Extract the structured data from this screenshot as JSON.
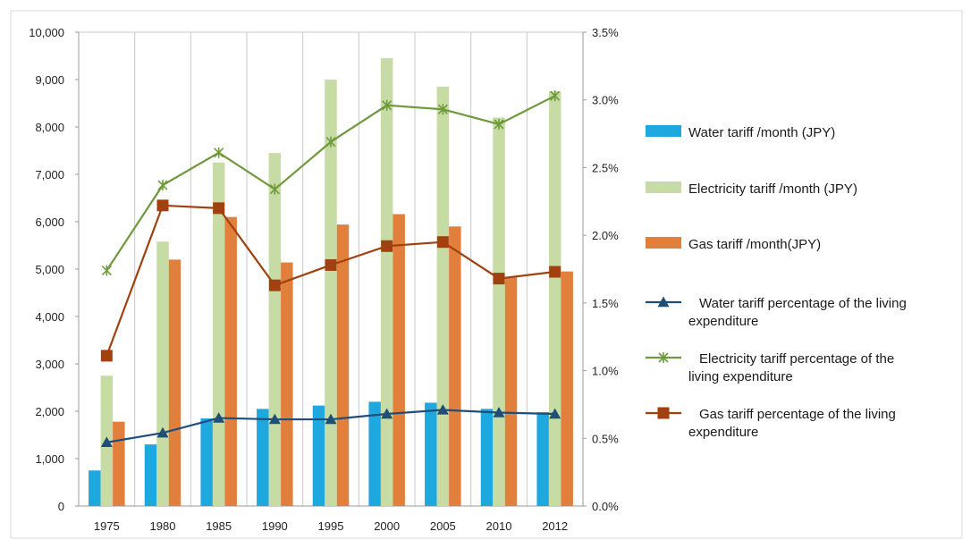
{
  "colors": {
    "water_bar": "#1fa8e0",
    "electricity_bar": "#c6dca4",
    "gas_bar": "#e0803c",
    "water_line": "#1f4e79",
    "electricity_line": "#6e9a3c",
    "gas_line": "#a0410f",
    "grid": "#c8c8c8"
  },
  "chart_data": {
    "type": "bar",
    "categories": [
      "1975",
      "1980",
      "1985",
      "1990",
      "1995",
      "2000",
      "2005",
      "2010",
      "2012"
    ],
    "y_left": {
      "min": 0,
      "max": 10000,
      "step": 1000,
      "tick_labels": [
        "0",
        "1,000",
        "2,000",
        "3,000",
        "4,000",
        "5,000",
        "6,000",
        "7,000",
        "8,000",
        "9,000",
        "10,000"
      ]
    },
    "y_right": {
      "min": 0,
      "max": 0.035,
      "step": 0.005,
      "tick_labels": [
        "0.0%",
        "0.5%",
        "1.0%",
        "1.5%",
        "2.0%",
        "2.5%",
        "3.0%",
        "3.5%"
      ]
    },
    "bar_series": [
      {
        "name": "Water tariff /month (JPY)",
        "values": [
          750,
          1300,
          1850,
          2050,
          2120,
          2200,
          2180,
          2050,
          1980
        ]
      },
      {
        "name": "Electricity tariff /month (JPY)",
        "values": [
          2750,
          5580,
          7250,
          7450,
          9000,
          9450,
          8850,
          8200,
          8750
        ]
      },
      {
        "name": "Gas tariff /month(JPY)",
        "values": [
          1780,
          5200,
          6100,
          5140,
          5940,
          6160,
          5900,
          4820,
          4950
        ]
      }
    ],
    "line_series": [
      {
        "name": "Water tariff percentage of the living expenditure",
        "values": [
          0.0047,
          0.0054,
          0.0065,
          0.0064,
          0.0064,
          0.0068,
          0.0071,
          0.0069,
          0.0068
        ]
      },
      {
        "name": "Electricity tariff percentage of the living expenditure",
        "values": [
          0.0174,
          0.0237,
          0.0261,
          0.0234,
          0.0269,
          0.0296,
          0.0293,
          0.0282,
          0.0303
        ]
      },
      {
        "name": "Gas tariff percentage of the living expenditure",
        "values": [
          0.0111,
          0.0222,
          0.022,
          0.0163,
          0.0178,
          0.0192,
          0.0195,
          0.0168,
          0.0173
        ]
      }
    ],
    "grid": true,
    "legend_position": "right"
  },
  "legend": [
    {
      "lines": [
        "Water tariff /month (JPY)"
      ]
    },
    {
      "lines": [
        "Electricity tariff /month (JPY)"
      ]
    },
    {
      "lines": [
        "Gas tariff /month(JPY)"
      ]
    },
    {
      "lines": [
        "Water tariff percentage of the living",
        "expenditure"
      ]
    },
    {
      "lines": [
        "Electricity tariff percentage of the",
        "living expenditure"
      ]
    },
    {
      "lines": [
        "Gas tariff percentage of the living",
        "expenditure"
      ]
    }
  ]
}
